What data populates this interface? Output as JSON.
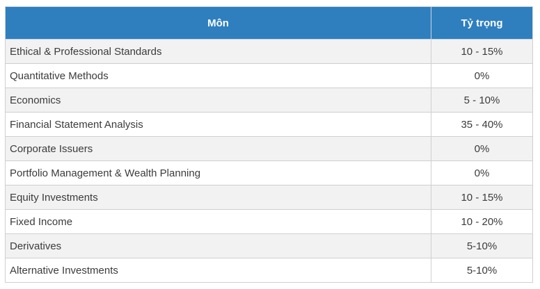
{
  "table": {
    "headers": {
      "subject": "Môn",
      "weight": "Tỷ trọng"
    },
    "rows": [
      {
        "subject": "Ethical & Professional Standards",
        "weight": "10 - 15%"
      },
      {
        "subject": "Quantitative Methods",
        "weight": "0%"
      },
      {
        "subject": "Economics",
        "weight": "5 - 10%"
      },
      {
        "subject": "Financial Statement Analysis",
        "weight": "35 - 40%"
      },
      {
        "subject": "Corporate Issuers",
        "weight": "0%"
      },
      {
        "subject": "Portfolio Management & Wealth Planning",
        "weight": "0%"
      },
      {
        "subject": "Equity Investments",
        "weight": "10 - 15%"
      },
      {
        "subject": "Fixed Income",
        "weight": "10 - 20%"
      },
      {
        "subject": "Derivatives",
        "weight": "5-10%"
      },
      {
        "subject": "Alternative Investments",
        "weight": "5-10%"
      }
    ]
  },
  "colors": {
    "header_bg": "#2f7fbf",
    "header_text": "#ffffff",
    "row_alt_bg": "#f2f2f2",
    "border": "#cfcfcf"
  }
}
